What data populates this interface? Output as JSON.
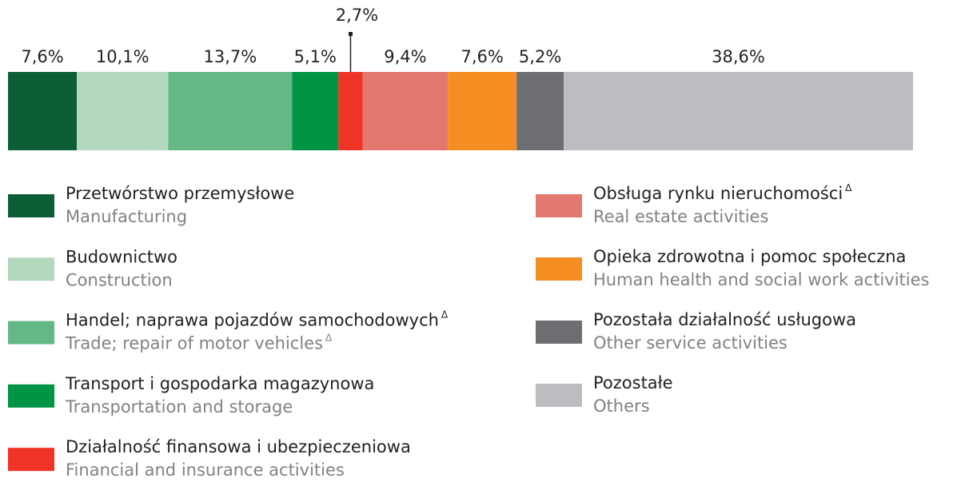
{
  "chart_data": {
    "type": "bar",
    "series": [
      {
        "name": "Przetwórstwo przemysłowe",
        "name_en": "Manufacturing",
        "color": "#0b5e35",
        "values": [
          7.6
        ],
        "value_labels": [
          "7,6%"
        ]
      },
      {
        "name": "Budownictwo",
        "name_en": "Construction",
        "color": "#b4d8be",
        "values": [
          10.1
        ],
        "value_labels": [
          "10,1%"
        ]
      },
      {
        "name": "Handel; naprawa pojazdów samochodowych",
        "name_en": "Trade; repair of motor vehicles",
        "note_mark": "Δ",
        "note_mark_en": "Δ",
        "color": "#64b886",
        "values": [
          13.7
        ],
        "value_labels": [
          "13,7%"
        ]
      },
      {
        "name": "Transport i gospodarka magazynowa",
        "name_en": "Transportation and storage",
        "color": "#009444",
        "values": [
          5.1
        ],
        "value_labels": [
          "5,1%"
        ]
      },
      {
        "name": "Działalność finansowa i ubezpieczeniowa",
        "name_en": "Financial and insurance activities",
        "color": "#ef3426",
        "values": [
          2.7
        ],
        "value_labels": [
          "2,7%"
        ]
      },
      {
        "name": "Obsługa rynku nieruchomości",
        "name_en": "Real estate activities",
        "note_mark": "Δ",
        "color": "#e2786e",
        "values": [
          9.4
        ],
        "value_labels": [
          "9,4%"
        ]
      },
      {
        "name": "Opieka zdrowotna i pomoc społeczna",
        "name_en": "Human health and social work activities",
        "color": "#f58e22",
        "values": [
          7.6
        ],
        "value_labels": [
          "7,6%"
        ]
      },
      {
        "name": "Pozostała działalność usługowa",
        "name_en": "Other service activities",
        "color": "#6d6e71",
        "values": [
          5.2
        ],
        "value_labels": [
          "5,2%"
        ]
      },
      {
        "name": "Pozostałe",
        "name_en": "Others",
        "color": "#bcbdc1",
        "values": [
          38.6
        ],
        "value_labels": [
          "38,6%"
        ]
      }
    ]
  }
}
